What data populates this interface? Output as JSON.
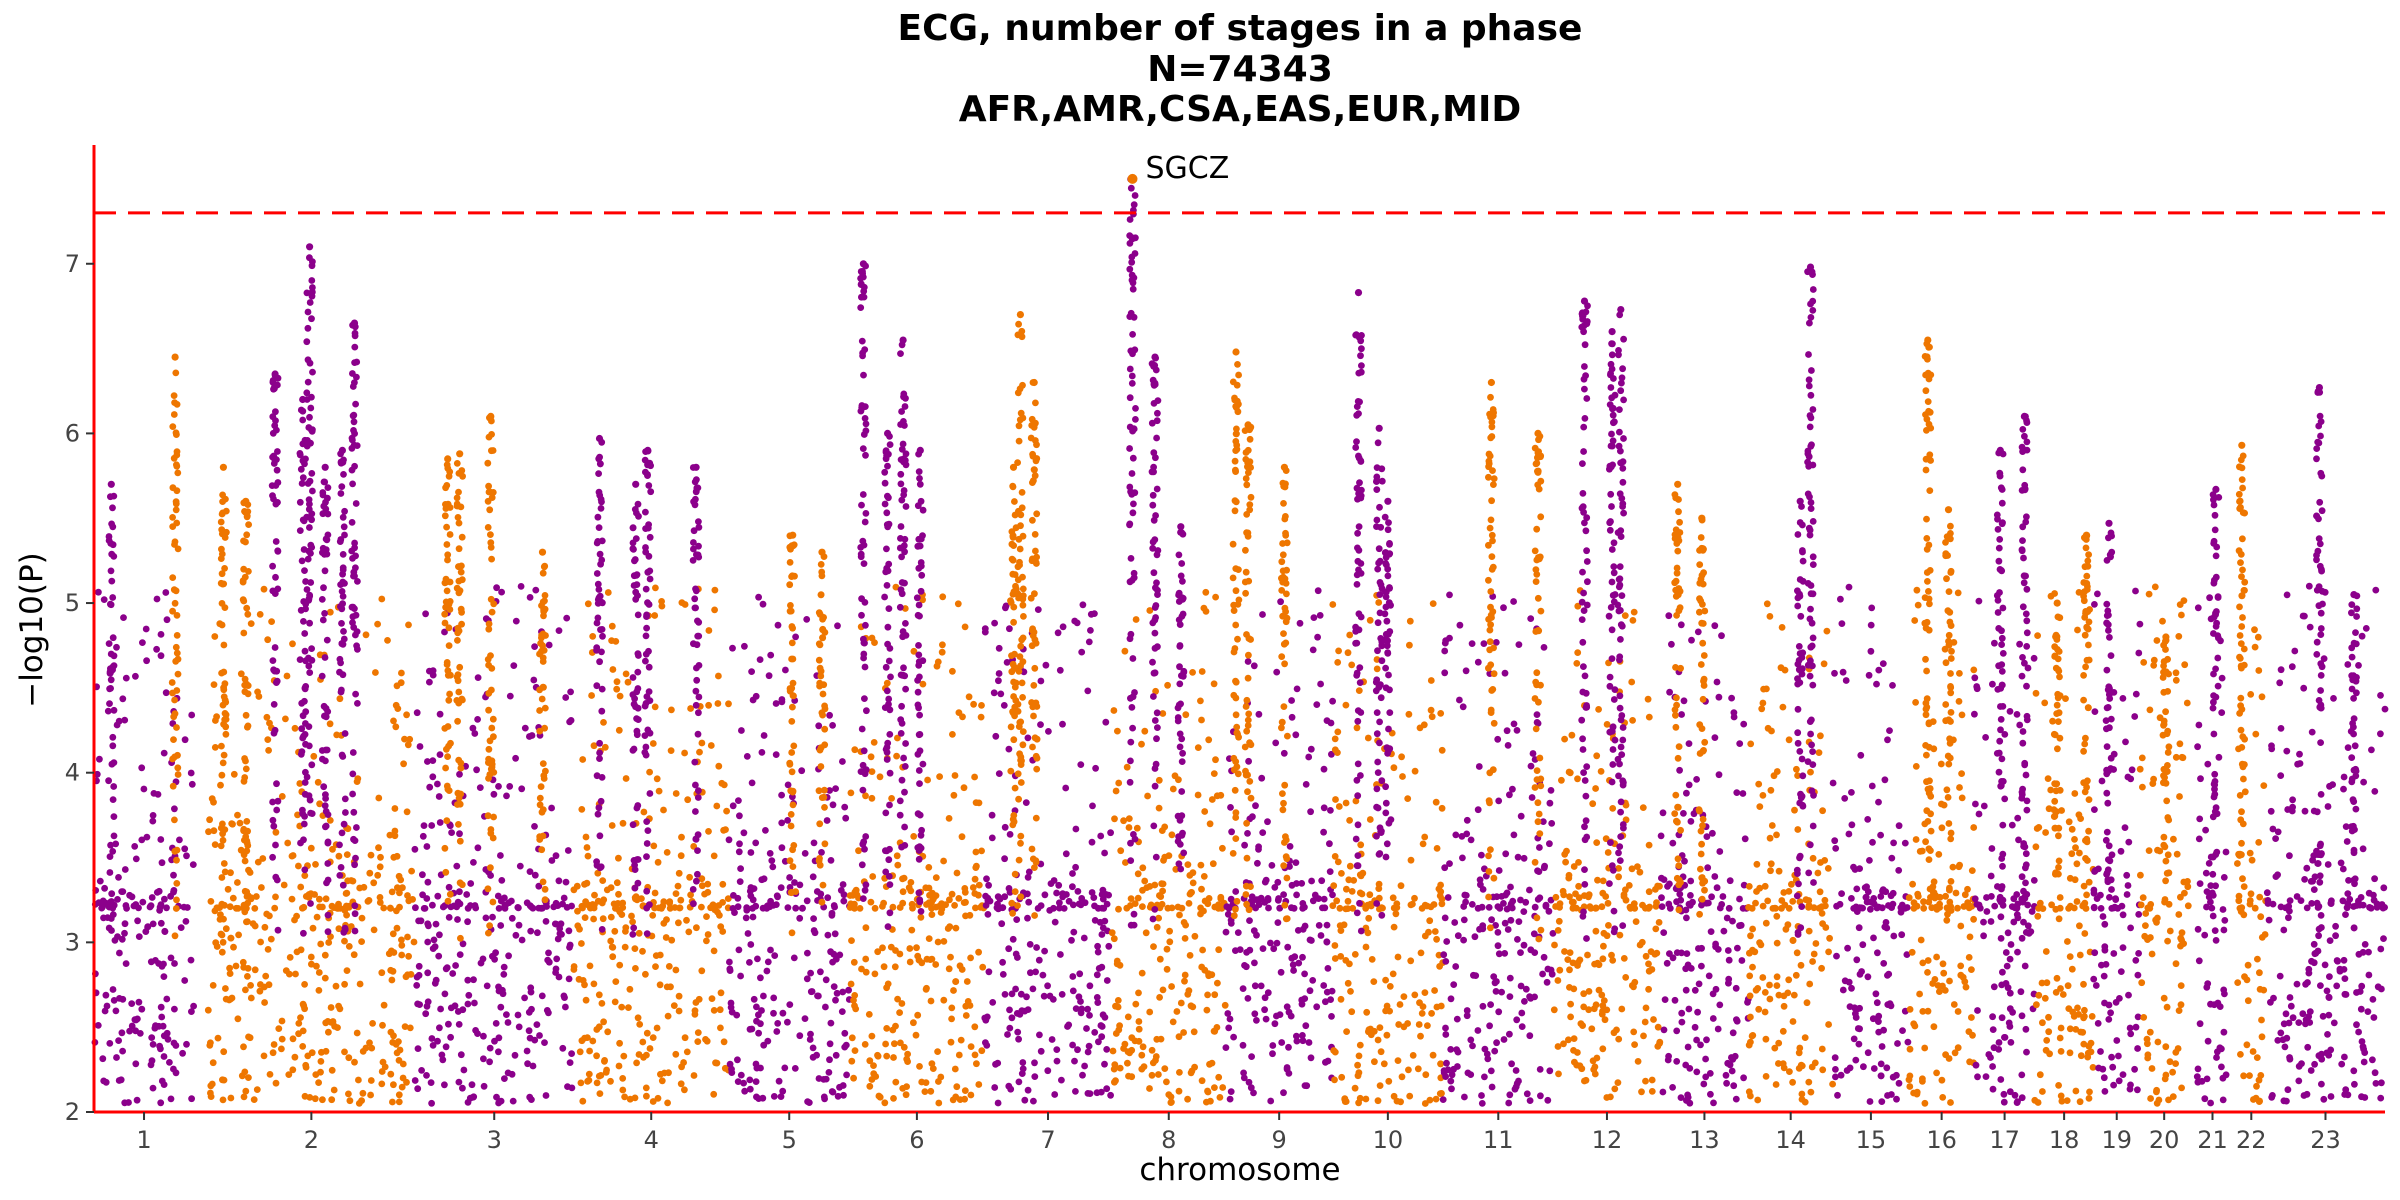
{
  "chart_data": {
    "type": "scatter",
    "subtype": "manhattan",
    "title_lines": [
      "ECG, number of stages in a phase",
      "N=74343",
      "AFR,AMR,CSA,EAS,EUR,MID"
    ],
    "xlabel": "chromosome",
    "ylabel": "−log10(P)",
    "ylim": [
      2,
      7.7
    ],
    "yticks": [
      2,
      3,
      4,
      5,
      6,
      7
    ],
    "grid": false,
    "significance_threshold": 7.3,
    "colors": {
      "odd": "#8B008B",
      "even": "#EE7600",
      "threshold": "#FF0000",
      "axis": "#FF0000"
    },
    "chromosomes": [
      {
        "label": "1",
        "start": 0,
        "end": 5.8,
        "peaks": [
          [
            1.0,
            5.7
          ]
        ]
      },
      {
        "label": "2",
        "start": 6.6,
        "end": 18.6,
        "peaks": [
          [
            4.7,
            6.45
          ],
          [
            7.5,
            5.8
          ],
          [
            8.8,
            5.6
          ]
        ]
      },
      {
        "label": "3",
        "start": 18.6,
        "end": 27.8,
        "peaks": [
          [
            10.5,
            6.35
          ],
          [
            12.1,
            6.2
          ],
          [
            12.5,
            7.1
          ],
          [
            13.4,
            5.8
          ],
          [
            14.4,
            5.9
          ],
          [
            15.1,
            6.65
          ]
        ]
      },
      {
        "label": "4",
        "start": 27.8,
        "end": 36.8,
        "peaks": [
          [
            20.5,
            5.85
          ],
          [
            21.2,
            5.88
          ],
          [
            23.0,
            6.1
          ],
          [
            26.0,
            5.3
          ]
        ]
      },
      {
        "label": "5",
        "start": 36.8,
        "end": 43.8,
        "peaks": [
          [
            29.3,
            5.97
          ],
          [
            31.4,
            5.7
          ],
          [
            32.1,
            5.9
          ],
          [
            34.9,
            5.8
          ]
        ]
      },
      {
        "label": "6",
        "start": 43.8,
        "end": 51.6,
        "peaks": [
          [
            40.5,
            5.4
          ],
          [
            42.2,
            5.3
          ]
        ]
      },
      {
        "label": "7",
        "start": 51.6,
        "end": 59.0,
        "peaks": [
          [
            44.6,
            7.0
          ],
          [
            46.0,
            6.0
          ],
          [
            46.9,
            6.55
          ],
          [
            47.9,
            5.9
          ]
        ]
      },
      {
        "label": "8",
        "start": 59.0,
        "end": 65.6,
        "peaks": [
          [
            53.7,
            6.7
          ],
          [
            54.5,
            6.3
          ],
          [
            53.3,
            5.8
          ]
        ]
      },
      {
        "label": "9",
        "start": 65.6,
        "end": 71.8,
        "peaks": [
          [
            60.2,
            7.5
          ],
          [
            61.5,
            6.45
          ],
          [
            63.0,
            5.45
          ]
        ]
      },
      {
        "label": "10",
        "start": 71.8,
        "end": 78.2,
        "peaks": [
          [
            66.2,
            6.48
          ],
          [
            66.9,
            6.05
          ],
          [
            69.0,
            5.8
          ]
        ]
      },
      {
        "label": "11",
        "start": 78.2,
        "end": 84.6,
        "peaks": [
          [
            73.3,
            6.83
          ],
          [
            74.5,
            6.03
          ],
          [
            75.0,
            5.6
          ]
        ]
      },
      {
        "label": "12",
        "start": 84.6,
        "end": 90.8,
        "peaks": [
          [
            81.0,
            6.3
          ],
          [
            83.7,
            6.0
          ]
        ]
      },
      {
        "label": "13",
        "start": 90.8,
        "end": 95.9,
        "peaks": [
          [
            86.4,
            6.78
          ],
          [
            88.0,
            6.6
          ],
          [
            88.5,
            6.73
          ]
        ]
      },
      {
        "label": "14",
        "start": 95.9,
        "end": 100.8,
        "peaks": [
          [
            91.8,
            5.7
          ],
          [
            93.2,
            5.5
          ]
        ]
      },
      {
        "label": "15",
        "start": 100.8,
        "end": 105.2,
        "peaks": [
          [
            99.5,
            6.98
          ],
          [
            98.9,
            5.6
          ]
        ]
      },
      {
        "label": "16",
        "start": 105.2,
        "end": 109.0,
        "peaks": [
          [
            106.3,
            6.55
          ],
          [
            107.5,
            5.55
          ]
        ]
      },
      {
        "label": "17",
        "start": 109.0,
        "end": 112.5,
        "peaks": [
          [
            110.5,
            5.9
          ],
          [
            111.9,
            6.1
          ]
        ]
      },
      {
        "label": "18",
        "start": 112.5,
        "end": 115.9,
        "peaks": [
          [
            113.8,
            5.0
          ],
          [
            115.5,
            5.4
          ]
        ]
      },
      {
        "label": "19",
        "start": 115.9,
        "end": 118.6,
        "peaks": [
          [
            116.8,
            5.47
          ]
        ]
      },
      {
        "label": "20",
        "start": 118.6,
        "end": 121.4,
        "peaks": [
          [
            120.1,
            4.8
          ]
        ]
      },
      {
        "label": "21",
        "start": 121.9,
        "end": 123.7,
        "peaks": [
          [
            123.0,
            5.67
          ]
        ]
      },
      {
        "label": "22",
        "start": 124.2,
        "end": 125.9,
        "peaks": [
          [
            124.5,
            5.93
          ]
        ]
      },
      {
        "label": "23",
        "start": 125.9,
        "end": 132.8,
        "peaks": [
          [
            129.0,
            6.27
          ],
          [
            131.0,
            5.05
          ]
        ]
      }
    ],
    "xlim": [
      0,
      132.8
    ],
    "annotations": [
      {
        "text": "SGCZ",
        "x": 60.2,
        "y": 7.5
      }
    ]
  }
}
